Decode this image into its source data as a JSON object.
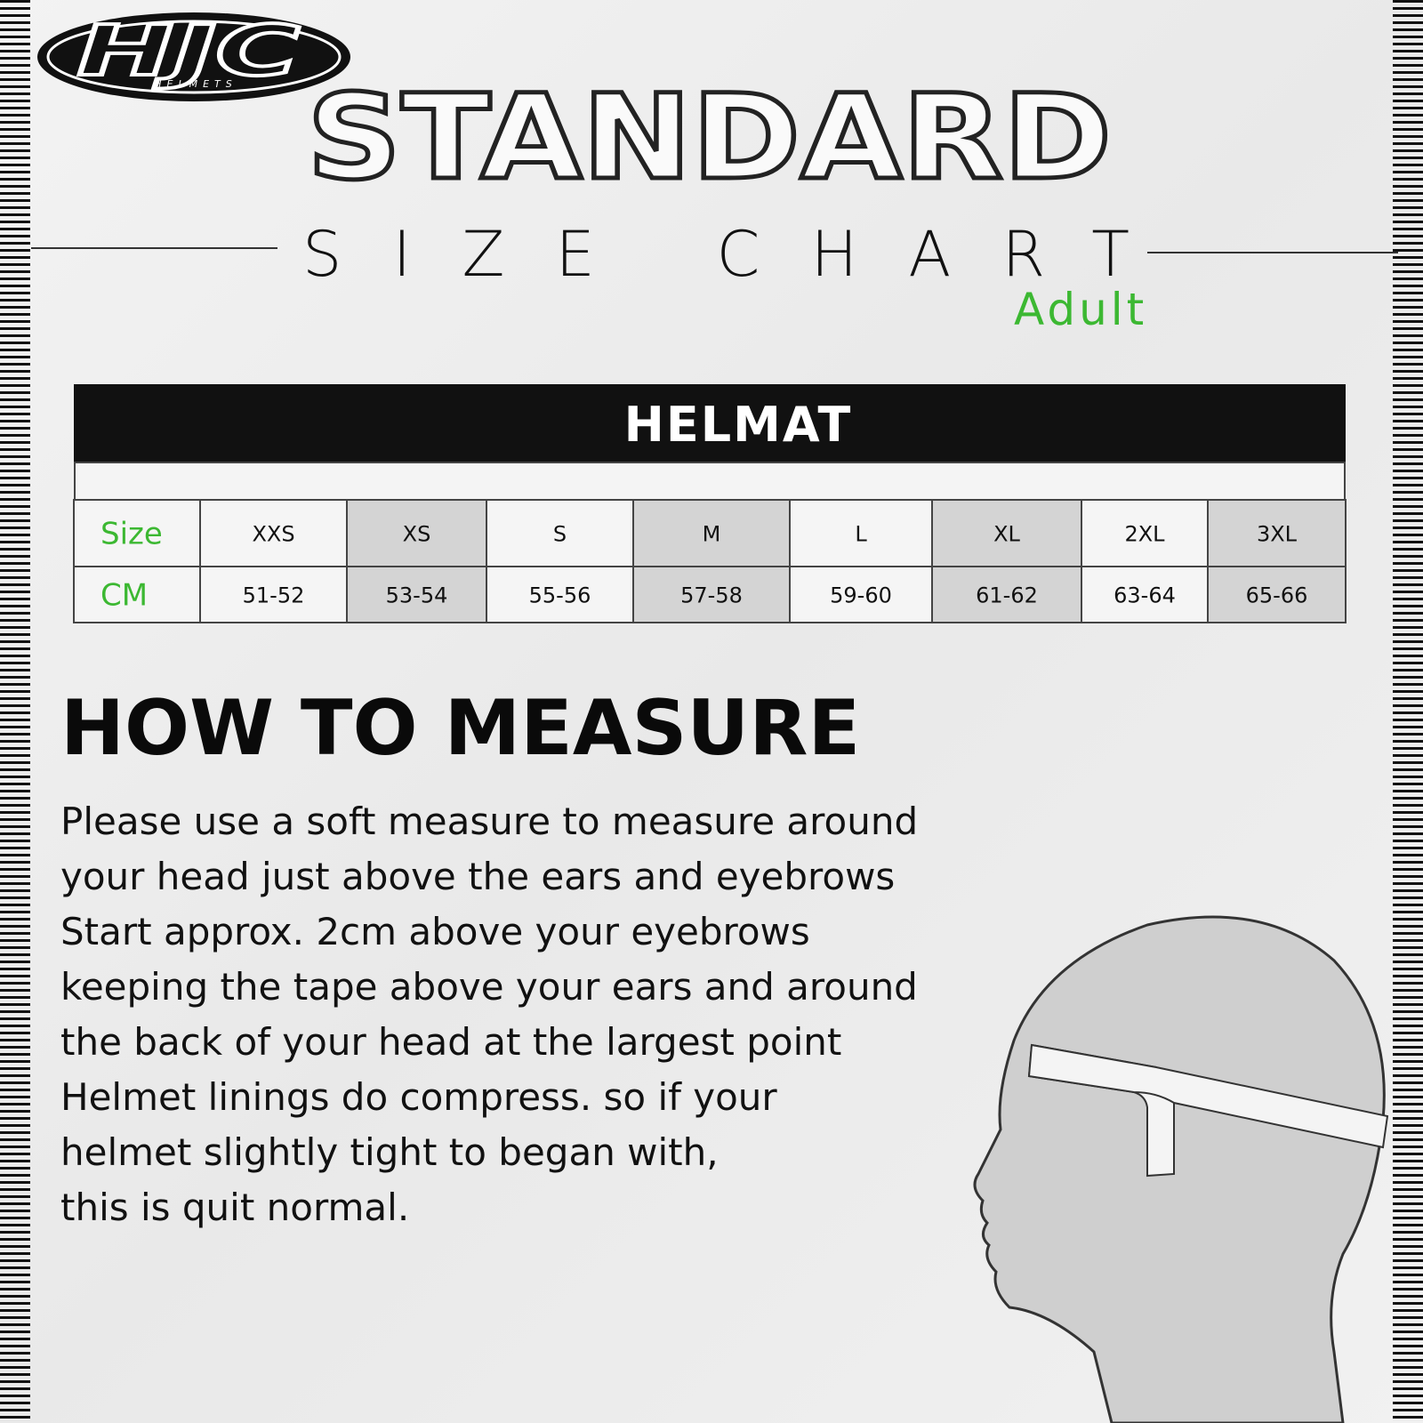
{
  "logo": {
    "brand": "HJC",
    "tagline": "HELMETS"
  },
  "header": {
    "title": "STANDARD",
    "subtitle": "SIZE CHART",
    "audience": "Adult"
  },
  "table": {
    "title": "HELMAT",
    "rows": [
      [
        "Size",
        "XXS",
        "XS",
        "S",
        "M",
        "L",
        "XL",
        "2XL",
        "3XL"
      ],
      [
        "CM",
        "51-52",
        "53-54",
        "55-56",
        "57-58",
        "59-60",
        "61-62",
        "63-64",
        "65-66"
      ]
    ]
  },
  "instructions": {
    "heading": "HOW TO MEASURE",
    "lines": [
      "Please use a soft measure to measure around",
      "your head just above the ears and eyebrows",
      "Start approx. 2cm above your eyebrows",
      "keeping the tape above your ears and around",
      "the back of your head at the largest point",
      "Helmet linings do compress. so if your",
      "helmet slightly tight to began with,",
      "this is quit normal."
    ]
  }
}
